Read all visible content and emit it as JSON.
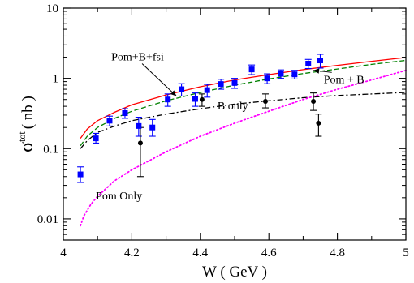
{
  "chart_data": {
    "type": "scatter",
    "title": "",
    "xlabel": "W ( GeV )",
    "ylabel_main": "σ",
    "ylabel_super": "tot",
    "ylabel_unit": "( nb )",
    "xlim": [
      4,
      5
    ],
    "ylim": [
      0.005,
      10
    ],
    "yscale": "log",
    "grid": false,
    "x_ticks": [
      {
        "value": 4,
        "label": "4"
      },
      {
        "value": 4.2,
        "label": "4.2"
      },
      {
        "value": 4.4,
        "label": "4.4"
      },
      {
        "value": 4.6,
        "label": "4.6"
      },
      {
        "value": 4.8,
        "label": "4.8"
      },
      {
        "value": 5,
        "label": "5"
      }
    ],
    "y_ticks": [
      {
        "value": 0.01,
        "label": "0.01"
      },
      {
        "value": 0.1,
        "label": "0.1"
      },
      {
        "value": 1,
        "label": "1"
      },
      {
        "value": 10,
        "label": "10"
      }
    ],
    "series": [
      {
        "name": "Pom+B+fsi",
        "kind": "line",
        "color": "#ff0000",
        "dash": "solid",
        "x": [
          4.05,
          4.07,
          4.1,
          4.15,
          4.2,
          4.3,
          4.4,
          4.5,
          4.6,
          4.7,
          4.8,
          4.9,
          5.0
        ],
        "y": [
          0.14,
          0.19,
          0.25,
          0.33,
          0.42,
          0.58,
          0.76,
          0.95,
          1.13,
          1.33,
          1.53,
          1.75,
          1.98
        ]
      },
      {
        "name": "Pom + B",
        "kind": "line",
        "color": "#008000",
        "dash": "dashed",
        "x": [
          4.05,
          4.07,
          4.1,
          4.15,
          4.2,
          4.3,
          4.4,
          4.5,
          4.6,
          4.7,
          4.8,
          4.9,
          5.0
        ],
        "y": [
          0.11,
          0.15,
          0.2,
          0.27,
          0.34,
          0.48,
          0.63,
          0.8,
          0.98,
          1.17,
          1.36,
          1.58,
          1.8
        ]
      },
      {
        "name": "B only",
        "kind": "line",
        "color": "#000000",
        "dash": "dashdot",
        "x": [
          4.05,
          4.07,
          4.1,
          4.15,
          4.2,
          4.3,
          4.4,
          4.5,
          4.6,
          4.7,
          4.8,
          4.9,
          5.0
        ],
        "y": [
          0.1,
          0.13,
          0.17,
          0.21,
          0.25,
          0.31,
          0.37,
          0.43,
          0.48,
          0.53,
          0.57,
          0.6,
          0.63
        ]
      },
      {
        "name": "Pom Only",
        "kind": "line",
        "color": "#ff00ff",
        "dash": "dotted",
        "x": [
          4.05,
          4.06,
          4.08,
          4.1,
          4.15,
          4.2,
          4.3,
          4.4,
          4.5,
          4.6,
          4.7,
          4.8,
          4.9,
          5.0
        ],
        "y": [
          0.008,
          0.011,
          0.016,
          0.021,
          0.035,
          0.05,
          0.09,
          0.15,
          0.23,
          0.34,
          0.5,
          0.7,
          0.95,
          1.3
        ]
      },
      {
        "kind": "points",
        "color": "#0000ff",
        "marker": "square",
        "x": [
          4.05,
          4.095,
          4.135,
          4.18,
          4.22,
          4.26,
          4.305,
          4.345,
          4.385,
          4.42,
          4.46,
          4.5,
          4.55,
          4.595,
          4.635,
          4.675,
          4.715,
          4.75
        ],
        "y": [
          0.043,
          0.14,
          0.25,
          0.32,
          0.21,
          0.2,
          0.5,
          0.7,
          0.51,
          0.68,
          0.83,
          0.86,
          1.34,
          1.0,
          1.16,
          1.14,
          1.62,
          1.8
        ],
        "err_low": [
          0.033,
          0.12,
          0.21,
          0.27,
          0.15,
          0.15,
          0.4,
          0.56,
          0.4,
          0.54,
          0.7,
          0.72,
          1.13,
          0.84,
          1.0,
          0.98,
          1.38,
          1.4
        ],
        "err_high": [
          0.055,
          0.165,
          0.29,
          0.37,
          0.28,
          0.26,
          0.6,
          0.84,
          0.62,
          0.82,
          0.97,
          1.0,
          1.55,
          1.16,
          1.32,
          1.3,
          1.86,
          2.2
        ]
      },
      {
        "kind": "points",
        "color": "#000000",
        "marker": "circle",
        "x": [
          4.225,
          4.405,
          4.59,
          4.73,
          4.745
        ],
        "y": [
          0.12,
          0.5,
          0.47,
          0.47,
          0.23
        ],
        "err_low": [
          0.04,
          0.4,
          0.38,
          0.35,
          0.15
        ],
        "err_high": [
          0.2,
          0.6,
          0.6,
          0.62,
          0.31
        ]
      }
    ],
    "annotations": [
      {
        "text": "Pom+B+fsi",
        "x": 4.14,
        "y": 1.8,
        "arrow_to": {
          "x": 4.33,
          "y": 0.56
        }
      },
      {
        "text": "Pom + B",
        "x": 4.76,
        "y": 0.86,
        "arrow_to": {
          "x": 4.73,
          "y": 1.3
        }
      },
      {
        "text": "B only",
        "x": 4.45,
        "y": 0.36
      },
      {
        "text": "Pom Only",
        "x": 4.095,
        "y": 0.019
      }
    ]
  }
}
